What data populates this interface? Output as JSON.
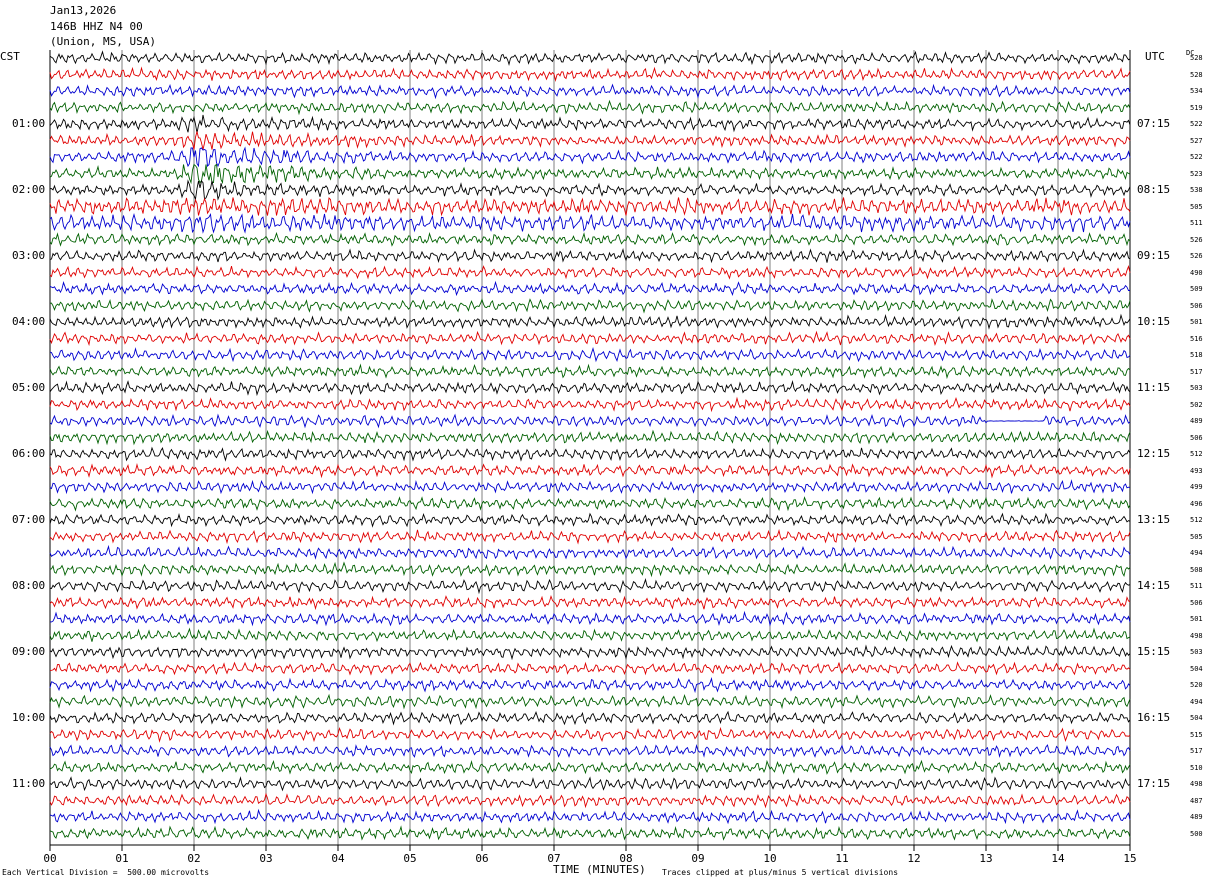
{
  "header": {
    "date": "Jan13,2026",
    "station": "146B HHZ N4 00",
    "location": "(Union, MS, USA)"
  },
  "left_zone": "CST",
  "right_zone": "UTC",
  "dc_header": "DC",
  "footer": {
    "scale_note": "Each Vertical Division =  500.00 microvolts",
    "xlabel": "TIME (MINUTES)",
    "clip_note": "Traces clipped at plus/minus 5 vertical divisions"
  },
  "colors": {
    "trace_cycle": [
      "#000000",
      "#e00000",
      "#0000d0",
      "#006000"
    ],
    "grid": "#000000",
    "background": "#ffffff"
  },
  "chart_data": {
    "type": "line",
    "xlabel": "TIME (MINUTES)",
    "xlim": [
      0,
      15
    ],
    "x_ticks": [
      "00",
      "01",
      "02",
      "03",
      "04",
      "05",
      "06",
      "07",
      "08",
      "09",
      "10",
      "11",
      "12",
      "13",
      "14",
      "15"
    ],
    "rows": 48,
    "minutes_per_row": 15,
    "left_time_labels": [
      {
        "row": 4,
        "label": "01:00"
      },
      {
        "row": 8,
        "label": "02:00"
      },
      {
        "row": 12,
        "label": "03:00"
      },
      {
        "row": 16,
        "label": "04:00"
      },
      {
        "row": 20,
        "label": "05:00"
      },
      {
        "row": 24,
        "label": "06:00"
      },
      {
        "row": 28,
        "label": "07:00"
      },
      {
        "row": 32,
        "label": "08:00"
      },
      {
        "row": 36,
        "label": "09:00"
      },
      {
        "row": 40,
        "label": "10:00"
      },
      {
        "row": 44,
        "label": "11:00"
      }
    ],
    "right_time_labels": [
      {
        "row": 4,
        "label": "07:15"
      },
      {
        "row": 8,
        "label": "08:15"
      },
      {
        "row": 12,
        "label": "09:15"
      },
      {
        "row": 16,
        "label": "10:15"
      },
      {
        "row": 20,
        "label": "11:15"
      },
      {
        "row": 24,
        "label": "12:15"
      },
      {
        "row": 28,
        "label": "13:15"
      },
      {
        "row": 32,
        "label": "14:15"
      },
      {
        "row": 36,
        "label": "15:15"
      },
      {
        "row": 40,
        "label": "16:15"
      },
      {
        "row": 44,
        "label": "17:15"
      }
    ],
    "dc_offsets": [
      "528",
      "528",
      "534",
      "519",
      "522",
      "527",
      "522",
      "523",
      "538",
      "505",
      "511",
      "526",
      "526",
      "490",
      "509",
      "506",
      "501",
      "516",
      "518",
      "517",
      "503",
      "502",
      "489",
      "506",
      "512",
      "493",
      "499",
      "496",
      "512",
      "505",
      "494",
      "508",
      "511",
      "506",
      "501",
      "498",
      "503",
      "504",
      "520",
      "494",
      "504",
      "515",
      "517",
      "510",
      "498",
      "487",
      "489",
      "500"
    ],
    "event": {
      "row_start": 4,
      "row_end": 10,
      "minute": 2.1,
      "description_shown": false
    }
  }
}
